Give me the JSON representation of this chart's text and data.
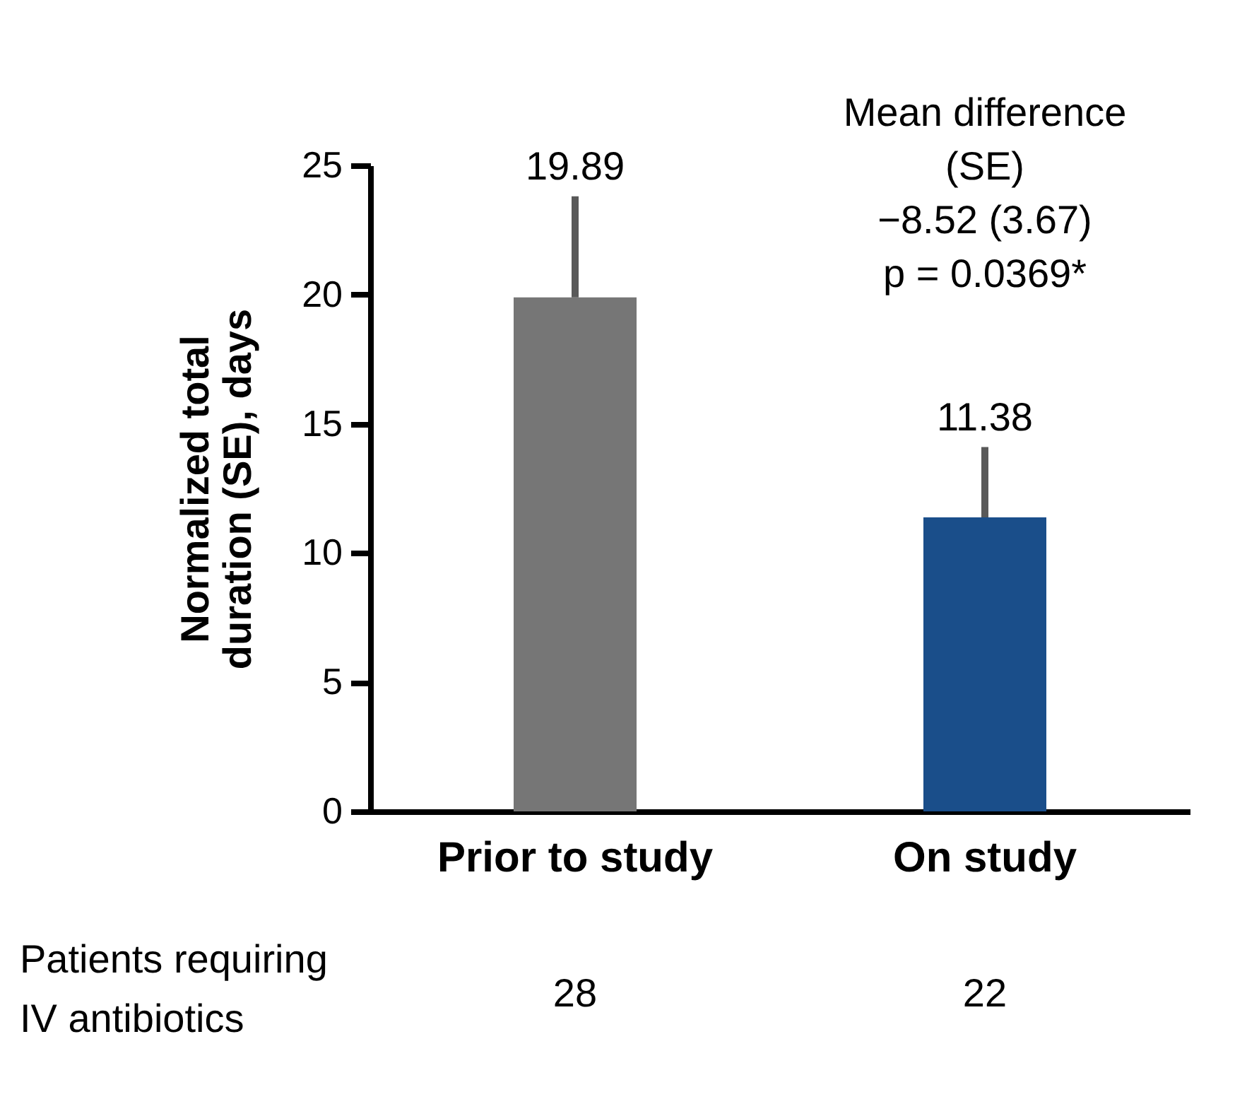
{
  "chart_data": {
    "type": "bar",
    "ylabel": "Normalized total\nduration (SE), days",
    "categories": [
      "Prior to study",
      "On study"
    ],
    "values": [
      19.89,
      11.38
    ],
    "colors": [
      "#767676",
      "#1a4e8a"
    ],
    "errors": [
      [
        19.89,
        23.8
      ],
      [
        11.38,
        14.1
      ]
    ],
    "data_labels": true,
    "ylim": [
      0,
      25
    ],
    "yticks": [
      0,
      5,
      10,
      15,
      20,
      25
    ],
    "grid": false,
    "annotations": [
      "Mean difference\n(SE)\n−8.52 (3.67)\np = 0.0369*",
      "Patients requiring\nIV antibiotics",
      "28",
      "22"
    ]
  }
}
